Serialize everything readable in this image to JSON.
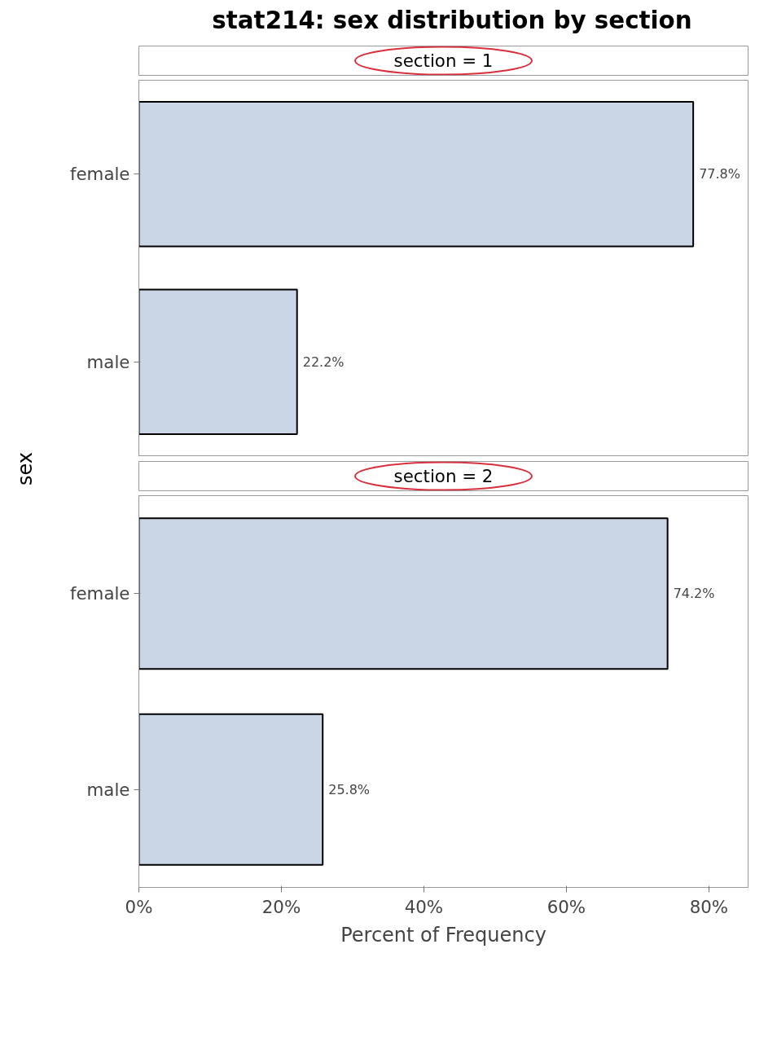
{
  "chart_data": [
    {
      "type": "bar",
      "orientation": "horizontal",
      "title": "stat214: sex distribution by section",
      "subtitle": "section = 1",
      "ylabel": "sex",
      "categories": [
        "female",
        "male"
      ],
      "values": [
        77.8,
        22.2
      ],
      "value_labels": [
        "77.8%",
        "22.2%"
      ],
      "color": "#cad5e5",
      "xlim": [
        0,
        85.5
      ],
      "tick_labels": "y",
      "grid": false
    },
    {
      "type": "bar",
      "orientation": "horizontal",
      "subtitle": "section = 2",
      "xlabel": "Percent of Frequency",
      "categories": [
        "female",
        "male"
      ],
      "values": [
        74.2,
        25.8
      ],
      "value_labels": [
        "74.2%",
        "25.8%"
      ],
      "color": "#cad5e5",
      "xlim": [
        0,
        85.5
      ],
      "xticks": [
        {
          "value": 0,
          "label": "0%"
        },
        {
          "value": 20,
          "label": "20%"
        },
        {
          "value": 40,
          "label": "40%"
        },
        {
          "value": 60,
          "label": "60%"
        },
        {
          "value": 80,
          "label": "80%"
        }
      ],
      "grid": false
    }
  ]
}
